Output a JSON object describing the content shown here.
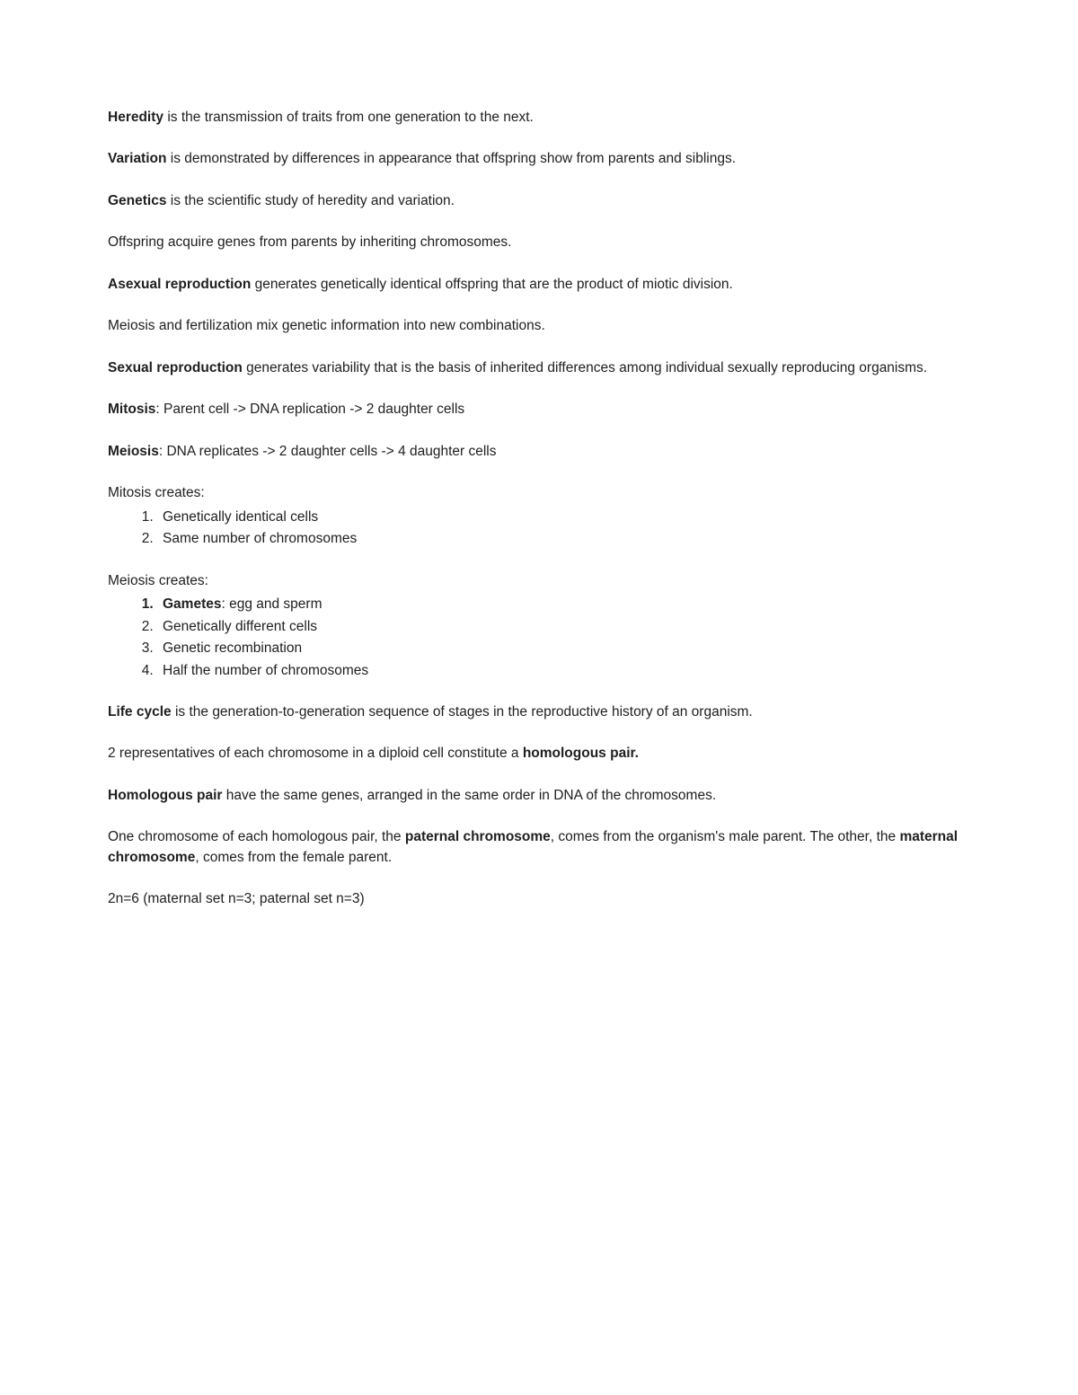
{
  "p1": {
    "b": "Heredity",
    "t": " is the transmission of traits from one generation to the next."
  },
  "p2": {
    "b": "Variation",
    "t": " is demonstrated by differences in appearance that offspring show from parents and siblings."
  },
  "p3": {
    "b": "Genetics",
    "t": " is the scientific study of heredity and variation."
  },
  "p4": {
    "t": "Offspring acquire genes from parents by inheriting chromosomes."
  },
  "p5": {
    "b": "Asexual reproduction",
    "t": " generates genetically identical offspring that are the product of miotic division."
  },
  "p6": {
    "t": "Meiosis and fertilization mix genetic information into new combinations."
  },
  "p7": {
    "b": "Sexual reproduction",
    "t": " generates variability that is the basis of inherited differences among individual sexually reproducing organisms."
  },
  "p8": {
    "b": "Mitosis",
    "t": ": Parent cell -> DNA replication -> 2 daughter cells"
  },
  "p9": {
    "b": "Meiosis",
    "t": ": DNA replicates -> 2 daughter cells -> 4 daughter cells"
  },
  "p10": {
    "t": "Mitosis creates:"
  },
  "mitosis_list": [
    "Genetically identical cells",
    "Same number of chromosomes"
  ],
  "p11": {
    "t": "Meiosis creates:"
  },
  "meiosis_list": {
    "i1": {
      "b": "Gametes",
      "t": ": egg and sperm"
    },
    "i2": "Genetically different cells",
    "i3": "Genetic recombination",
    "i4": "Half the number of chromosomes"
  },
  "p12": {
    "b": "Life cycle",
    "t": " is the generation-to-generation sequence of stages in the reproductive history of an organism."
  },
  "p13": {
    "t1": "2 representatives of each chromosome in a diploid cell constitute a ",
    "b": "homologous pair."
  },
  "p14": {
    "b": "Homologous pair",
    "t": " have the same genes, arranged in the same order in DNA of the chromosomes."
  },
  "p15": {
    "t1": "One chromosome of each homologous pair, the ",
    "b1": "paternal chromosome",
    "t2": ", comes from the organism's male parent. The other, the ",
    "b2": "maternal chromosome",
    "t3": ", comes from the female parent."
  },
  "p16": {
    "t": "2n=6 (maternal set n=3; paternal set n=3)"
  }
}
